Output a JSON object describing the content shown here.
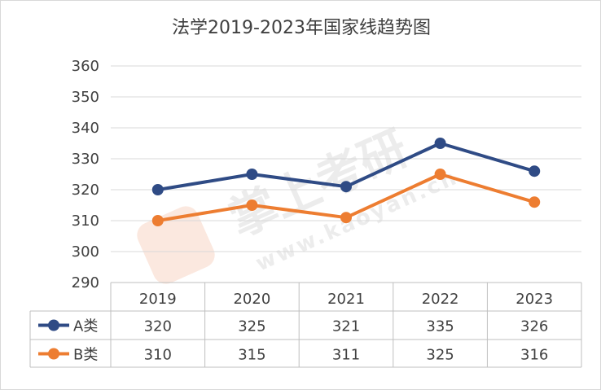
{
  "chart_data": {
    "type": "line",
    "title": "法学2019-2023年国家线趋势图",
    "categories": [
      "2019",
      "2020",
      "2021",
      "2022",
      "2023"
    ],
    "series": [
      {
        "name": "A类",
        "values": [
          320,
          325,
          321,
          335,
          326
        ],
        "color": "#2f4b85"
      },
      {
        "name": "B类",
        "values": [
          310,
          315,
          311,
          325,
          316
        ],
        "color": "#ed7d31"
      }
    ],
    "ylim": [
      290,
      360
    ],
    "yticks": [
      "290",
      "300",
      "310",
      "320",
      "330",
      "340",
      "350",
      "360"
    ],
    "grid": true,
    "legend": "data-table",
    "data_table": {
      "rows": [
        {
          "label": "A类",
          "cells": [
            "320",
            "325",
            "321",
            "335",
            "326"
          ]
        },
        {
          "label": "B类",
          "cells": [
            "310",
            "315",
            "311",
            "325",
            "316"
          ]
        }
      ]
    },
    "watermark": {
      "text": "掌上考研",
      "url": "www.kaoyan.cn"
    }
  }
}
